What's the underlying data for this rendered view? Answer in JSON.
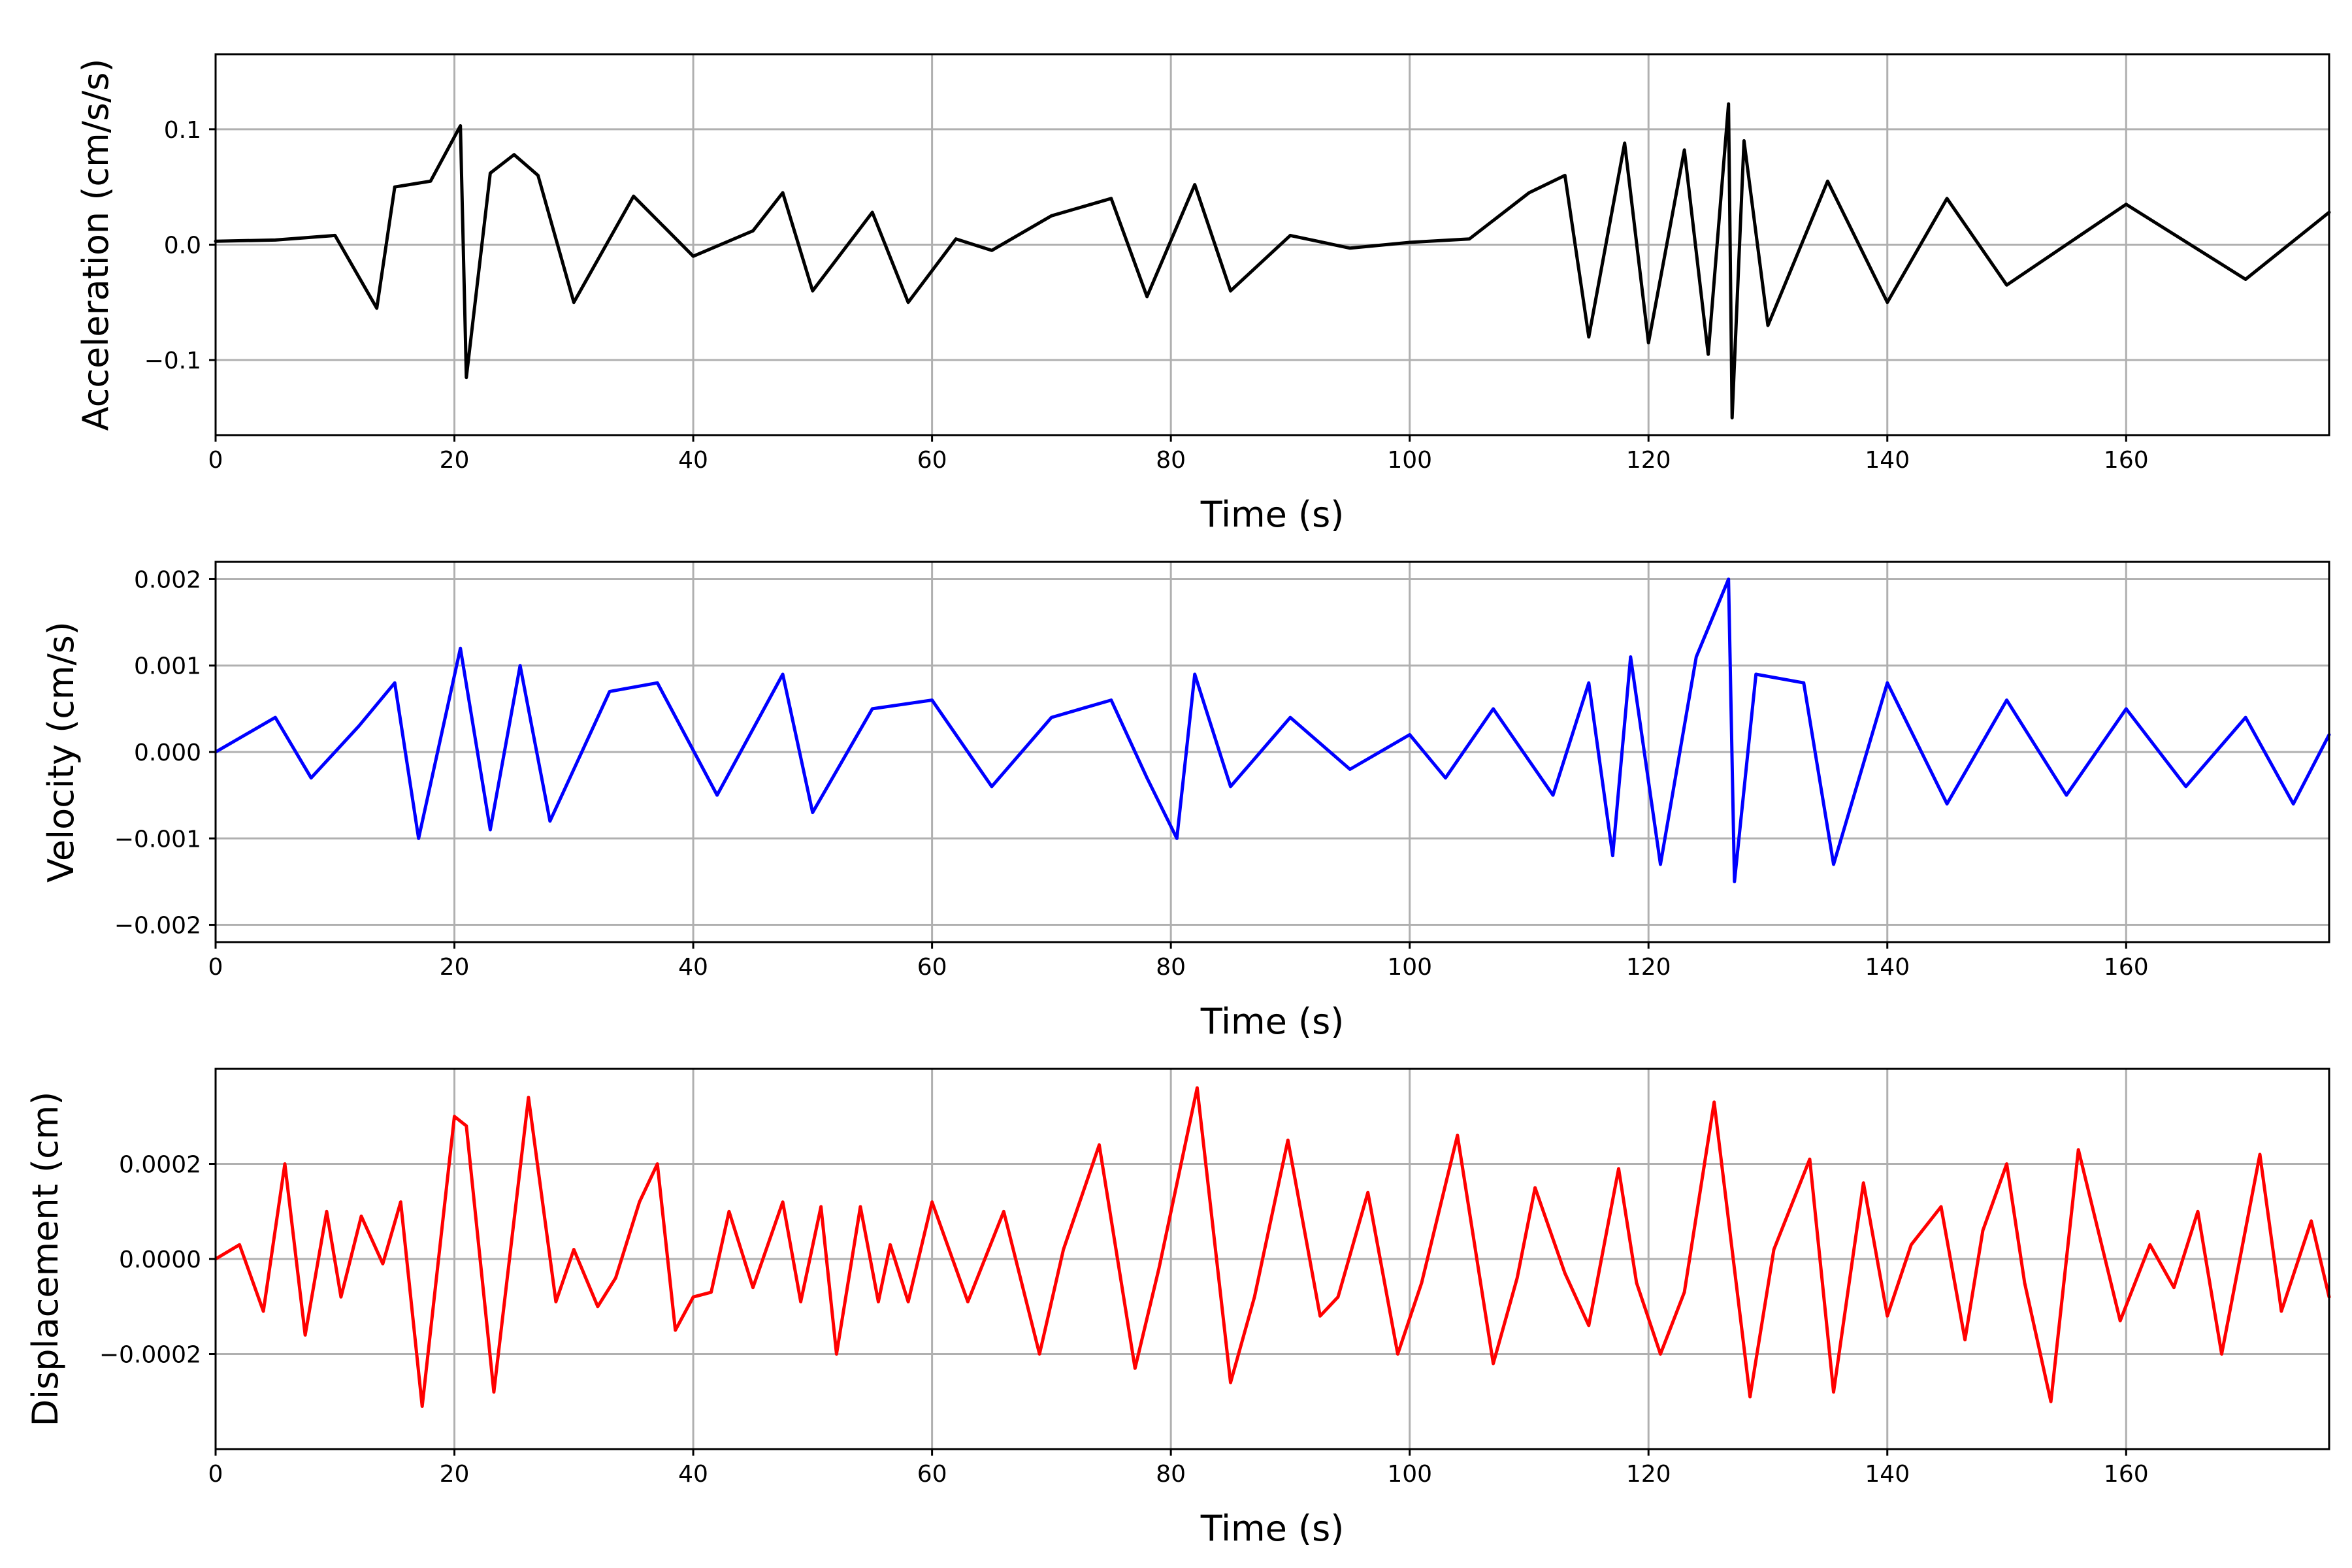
{
  "chart_data": [
    {
      "type": "line",
      "xlabel": "Time (s)",
      "ylabel": "Acceleration (cm/s/s)",
      "xlim": [
        0,
        177
      ],
      "ylim": [
        -0.165,
        0.165
      ],
      "x_ticks": [
        0,
        20,
        40,
        60,
        80,
        100,
        120,
        140,
        160
      ],
      "x_tick_labels": [
        "0",
        "20",
        "40",
        "60",
        "80",
        "100",
        "120",
        "140",
        "160"
      ],
      "y_ticks": [
        -0.1,
        0.0,
        0.1
      ],
      "y_tick_labels": [
        "−0.1",
        "0.0",
        "0.1"
      ],
      "grid": true,
      "color": "#000000",
      "series": [
        {
          "x": [
            0,
            5,
            10,
            13.5,
            15,
            18,
            20.5,
            21,
            23,
            25,
            27,
            30,
            35,
            40,
            45,
            47.5,
            50,
            55,
            58,
            62,
            65,
            70,
            75,
            78,
            82,
            85,
            90,
            95,
            100,
            105,
            110,
            113,
            115,
            118,
            120,
            123,
            125,
            126.7,
            127,
            128,
            130,
            135,
            140,
            145,
            150,
            160,
            170,
            177
          ],
          "values": [
            0.003,
            0.004,
            0.008,
            -0.055,
            0.05,
            0.055,
            0.103,
            -0.115,
            0.062,
            0.078,
            0.06,
            -0.05,
            0.042,
            -0.01,
            0.012,
            0.045,
            -0.04,
            0.028,
            -0.05,
            0.005,
            -0.005,
            0.025,
            0.04,
            -0.045,
            0.052,
            -0.04,
            0.008,
            -0.003,
            0.002,
            0.005,
            0.045,
            0.06,
            -0.08,
            0.088,
            -0.085,
            0.082,
            -0.095,
            0.122,
            -0.15,
            0.09,
            -0.07,
            0.055,
            -0.05,
            0.04,
            -0.035,
            0.035,
            -0.03,
            0.028
          ]
        }
      ]
    },
    {
      "type": "line",
      "xlabel": "Time (s)",
      "ylabel": "Velocity (cm/s)",
      "xlim": [
        0,
        177
      ],
      "ylim": [
        -0.0022,
        0.0022
      ],
      "x_ticks": [
        0,
        20,
        40,
        60,
        80,
        100,
        120,
        140,
        160
      ],
      "x_tick_labels": [
        "0",
        "20",
        "40",
        "60",
        "80",
        "100",
        "120",
        "140",
        "160"
      ],
      "y_ticks": [
        -0.002,
        -0.001,
        0.0,
        0.001,
        0.002
      ],
      "y_tick_labels": [
        "−0.002",
        "−0.001",
        "0.000",
        "0.001",
        "0.002"
      ],
      "grid": true,
      "color": "#0000ff",
      "series": [
        {
          "x": [
            0,
            5,
            8,
            12,
            15,
            17,
            20.5,
            23,
            25.5,
            28,
            33,
            37,
            42,
            47.5,
            50,
            55,
            60,
            65,
            70,
            75,
            78,
            80.5,
            82,
            85,
            90,
            95,
            100,
            103,
            107,
            112,
            115,
            117,
            118.5,
            121,
            124,
            126.7,
            127.2,
            129,
            133,
            135.5,
            140,
            145,
            150,
            155,
            160,
            165,
            170,
            174,
            177
          ],
          "values": [
            0.0,
            0.0004,
            -0.0003,
            0.0003,
            0.0008,
            -0.001,
            0.0012,
            -0.0009,
            0.001,
            -0.0008,
            0.0007,
            0.0008,
            -0.0005,
            0.0009,
            -0.0007,
            0.0005,
            0.0006,
            -0.0004,
            0.0004,
            0.0006,
            -0.0003,
            -0.001,
            0.0009,
            -0.0004,
            0.0004,
            -0.0002,
            0.0002,
            -0.0003,
            0.0005,
            -0.0005,
            0.0008,
            -0.0012,
            0.0011,
            -0.0013,
            0.0011,
            0.002,
            -0.0015,
            0.0009,
            0.0008,
            -0.0013,
            0.0008,
            -0.0006,
            0.0006,
            -0.0005,
            0.0005,
            -0.0004,
            0.0004,
            -0.0006,
            0.0002
          ]
        }
      ]
    },
    {
      "type": "line",
      "xlabel": "Time (s)",
      "ylabel": "Displacement (cm)",
      "xlim": [
        0,
        177
      ],
      "ylim": [
        -0.0004,
        0.0004
      ],
      "x_ticks": [
        0,
        20,
        40,
        60,
        80,
        100,
        120,
        140,
        160
      ],
      "x_tick_labels": [
        "0",
        "20",
        "40",
        "60",
        "80",
        "100",
        "120",
        "140",
        "160"
      ],
      "y_ticks": [
        -0.0002,
        0.0,
        0.0002
      ],
      "y_tick_labels": [
        "−0.0002",
        "0.0000",
        "0.0002"
      ],
      "grid": true,
      "color": "#ff0000",
      "series": [
        {
          "x": [
            0,
            2,
            4,
            5.8,
            7.5,
            9.3,
            10.5,
            12.2,
            14,
            15.5,
            17.3,
            20,
            21,
            23.3,
            26.2,
            28.5,
            30,
            32,
            33.5,
            35.5,
            37,
            38.5,
            40,
            41.5,
            43,
            45,
            47.5,
            49,
            50.7,
            52,
            54,
            55.5,
            56.5,
            58,
            60,
            63,
            66,
            69,
            71,
            74,
            77,
            79,
            82.2,
            85,
            87,
            89.8,
            92.5,
            94,
            96.5,
            99,
            101,
            104,
            107,
            109,
            110.5,
            113,
            115,
            117.5,
            119,
            121,
            123,
            125.5,
            128.5,
            130.5,
            133.5,
            135.5,
            138,
            140,
            142,
            144.5,
            146.5,
            148,
            150,
            151.5,
            153.7,
            156,
            159.5,
            162,
            164,
            166,
            168,
            171.2,
            173,
            175.5,
            177
          ],
          "values": [
            0.0,
            3e-05,
            -0.00011,
            0.0002,
            -0.00016,
            0.0001,
            -8e-05,
            9e-05,
            -1e-05,
            0.00012,
            -0.00031,
            0.0003,
            0.00028,
            -0.00028,
            0.00034,
            -9e-05,
            2e-05,
            -0.0001,
            -4e-05,
            0.00012,
            0.0002,
            -0.00015,
            -8e-05,
            -7e-05,
            0.0001,
            -6e-05,
            0.00012,
            -9e-05,
            0.00011,
            -0.0002,
            0.00011,
            -9e-05,
            3e-05,
            -9e-05,
            0.00012,
            -9e-05,
            0.0001,
            -0.0002,
            2e-05,
            0.00024,
            -0.00023,
            -2e-05,
            0.00036,
            -0.00026,
            -8e-05,
            0.00025,
            -0.00012,
            -8e-05,
            0.00014,
            -0.0002,
            -5e-05,
            0.00026,
            -0.00022,
            -4e-05,
            0.00015,
            -3e-05,
            -0.00014,
            0.00019,
            -5e-05,
            -0.0002,
            -7e-05,
            0.00033,
            -0.00029,
            2e-05,
            0.00021,
            -0.00028,
            0.00016,
            -0.00012,
            3e-05,
            0.00011,
            -0.00017,
            6e-05,
            0.0002,
            -5e-05,
            -0.0003,
            0.00023,
            -0.00013,
            3e-05,
            -6e-05,
            0.0001,
            -0.0002,
            0.00022,
            -0.00011,
            8e-05,
            -8e-05
          ]
        }
      ]
    }
  ]
}
